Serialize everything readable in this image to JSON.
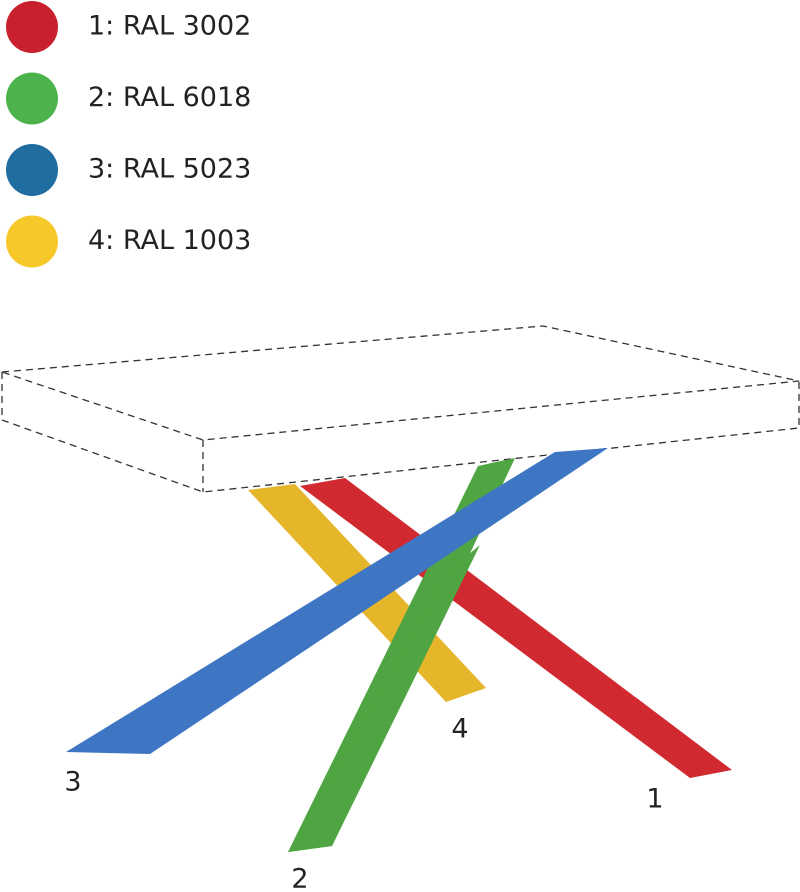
{
  "legend": [
    {
      "label": "1: RAL 3002",
      "color": "#c8202c"
    },
    {
      "label": "2: RAL 6018",
      "color": "#4cb34c"
    },
    {
      "label": "3: RAL 5023",
      "color": "#1f6da1"
    },
    {
      "label": "4: RAL 1003",
      "color": "#f6c82a"
    }
  ],
  "legs": [
    {
      "label": "1"
    },
    {
      "label": "2"
    },
    {
      "label": "3"
    },
    {
      "label": "4"
    }
  ]
}
